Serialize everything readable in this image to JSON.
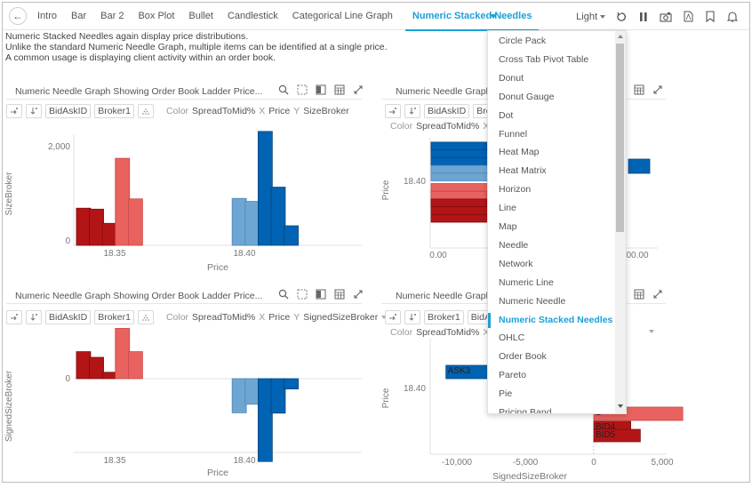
{
  "header": {
    "back_label": "←",
    "tabs": [
      "Intro",
      "Bar",
      "Bar 2",
      "Box Plot",
      "Bullet",
      "Candlestick",
      "Categorical Line Graph",
      "Numeric Stacked Needles"
    ],
    "active_tab": "Numeric Stacked Needles",
    "theme": "Light",
    "icons": [
      "refresh-icon",
      "pause-icon",
      "snapshot-icon",
      "pdf-icon",
      "bookmark-icon",
      "bell-icon"
    ]
  },
  "description": [
    "Numeric Stacked Needles again display price distributions.",
    "Unlike the standard Numeric Needle Graph, multiple items can be identified at a single price.",
    "A common usage is displaying client activity within an order book."
  ],
  "colors": {
    "accent": "#1ba0d8",
    "bid_dark": "#b31516",
    "bid_light": "#e8625f",
    "ask_light": "#6ea6d3",
    "ask_dark": "#0063b3"
  },
  "panels": {
    "top_left": {
      "title": "Numeric Needle Graph Showing Order Book Ladder Price...",
      "controls": [
        "BidAskID",
        "Broker1"
      ],
      "color_label": "Color",
      "color_value": "SpreadToMid%",
      "x_label": "X",
      "x_value": "Price",
      "y_label": "Y",
      "y_value": "SizeBroker"
    },
    "top_right": {
      "title": "Numeric Needle Graph",
      "controls": [
        "BidAskID",
        "Bro"
      ],
      "color_label": "Color",
      "color_value": "SpreadToMid%",
      "x_label": "X"
    },
    "bottom_left": {
      "title": "Numeric Needle Graph Showing Order Book Ladder Price...",
      "controls": [
        "BidAskID",
        "Broker1"
      ],
      "color_label": "Color",
      "color_value": "SpreadToMid%",
      "x_label": "X",
      "x_value": "Price",
      "y_label": "Y",
      "y_value": "SignedSizeBroker"
    },
    "bottom_right": {
      "title": "Numeric Needle Graph",
      "controls": [
        "Broker1",
        "BidAs"
      ],
      "color_label": "Color",
      "color_value": "SpreadToMid%",
      "x_label": "X"
    }
  },
  "dropdown": {
    "items": [
      "Circle Pack",
      "Cross Tab Pivot Table",
      "Donut",
      "Donut Gauge",
      "Dot",
      "Funnel",
      "Heat Map",
      "Heat Matrix",
      "Horizon",
      "Line",
      "Map",
      "Needle",
      "Network",
      "Numeric Line",
      "Numeric Needle",
      "Numeric Stacked Needles",
      "OHLC",
      "Order Book",
      "Pareto",
      "Pie",
      "Pricing Band"
    ],
    "selected": "Numeric Stacked Needles"
  },
  "chart_data": [
    {
      "type": "bar",
      "title": "Numeric Needle Graph Showing Order Book Ladder Price...",
      "xlabel": "Price",
      "ylabel": "SizeBroker",
      "x": [
        18.34,
        18.345,
        18.35,
        18.355,
        18.36,
        18.37,
        18.375,
        18.38,
        18.385,
        18.39,
        18.395
      ],
      "x_ticks": [
        "18.35",
        "18.40"
      ],
      "y_ticks": [
        "0",
        "2,000"
      ],
      "values": [
        760,
        740,
        450,
        1780,
        950,
        960,
        900,
        2330,
        1190,
        400
      ],
      "bar_prices": [
        18.338,
        18.343,
        18.348,
        18.353,
        18.358,
        18.398,
        18.403,
        18.408,
        18.413,
        18.418
      ],
      "bar_colors": [
        "bid_dark",
        "bid_dark",
        "bid_dark",
        "bid_light",
        "bid_light",
        "ask_light",
        "ask_light",
        "ask_dark",
        "ask_dark",
        "ask_dark"
      ],
      "ylim": [
        0,
        2400
      ]
    },
    {
      "type": "bar",
      "title": "Numeric Needle Graph Showing Order Book Ladder Price...",
      "xlabel": "Price",
      "ylabel": "SignedSizeBroker",
      "x_ticks": [
        "18.35",
        "18.40"
      ],
      "y_ticks": [
        "0"
      ],
      "bar_prices": [
        18.338,
        18.343,
        18.348,
        18.353,
        18.358,
        18.398,
        18.403,
        18.408,
        18.413,
        18.418
      ],
      "values": [
        760,
        600,
        180,
        1420,
        760,
        -960,
        -720,
        -2330,
        -970,
        -290
      ],
      "bar_colors": [
        "bid_dark",
        "bid_dark",
        "bid_dark",
        "bid_light",
        "bid_light",
        "ask_light",
        "ask_light",
        "ask_dark",
        "ask_dark",
        "ask_dark"
      ],
      "ylim": [
        -3000,
        1700
      ]
    },
    {
      "type": "bar",
      "orientation": "horizontal-stacked",
      "title": "Numeric Needle Graph",
      "ylabel": "Price",
      "xlabel": "",
      "y_ticks": [
        "18.40"
      ],
      "x_ticks": [
        "0.00",
        "00.00"
      ],
      "rows": [
        {
          "color": "ask_dark",
          "segments": 2
        },
        {
          "color": "ask_dark",
          "segments": 1
        },
        {
          "color": "ask_dark",
          "segments": 1
        },
        {
          "color": "ask_light",
          "segments": 1
        },
        {
          "color": "ask_light",
          "segments": 1
        },
        {
          "color": "bid_light",
          "segments": 1
        },
        {
          "color": "bid_light",
          "segments": 2
        },
        {
          "color": "bid_dark",
          "segments": 2
        },
        {
          "color": "bid_dark",
          "segments": 1
        },
        {
          "color": "bid_dark",
          "segments": 1
        }
      ]
    },
    {
      "type": "bar",
      "orientation": "horizontal",
      "title": "Numeric Needle Graph",
      "xlabel": "SignedSizeBroker",
      "ylabel": "Price",
      "x_ticks": [
        "-10,000",
        "-5,000",
        "0",
        "5,000"
      ],
      "y_ticks": [
        "18.40"
      ],
      "xlim": [
        -12000,
        8000
      ],
      "bars": [
        {
          "label": "ASK3",
          "value": -10800,
          "color": "ask_dark"
        },
        {
          "label": "B",
          "value": 6500,
          "color": "bid_light"
        },
        {
          "label": "BID4",
          "value": 2700,
          "color": "bid_dark"
        },
        {
          "label": "BID5",
          "value": 3400,
          "color": "bid_dark"
        }
      ]
    }
  ]
}
